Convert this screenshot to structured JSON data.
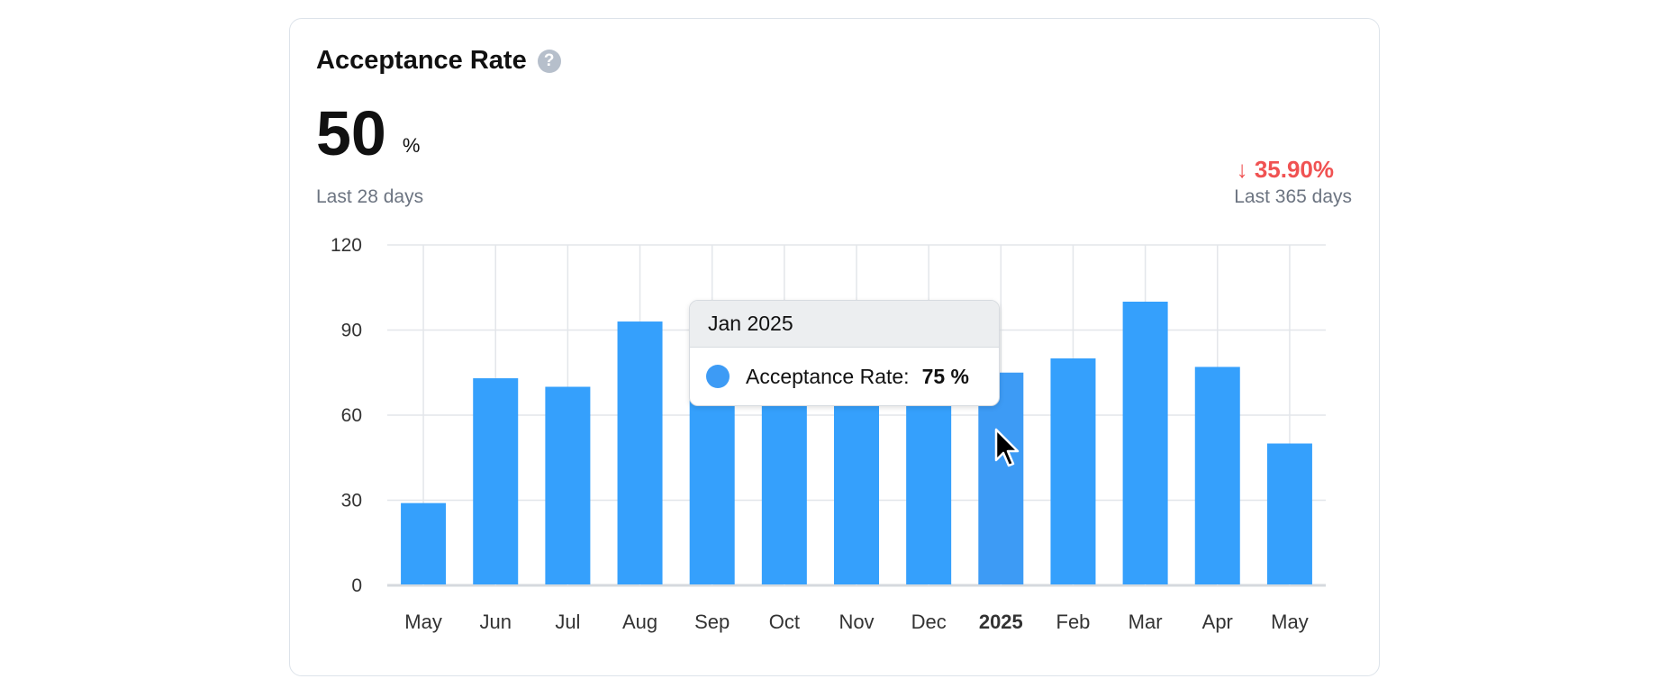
{
  "card": {
    "title": "Acceptance Rate",
    "help_icon": "question-circle-icon",
    "kpi_value": "50",
    "kpi_unit": "%",
    "kpi_period": "Last 28 days",
    "delta": "↓ 35.90%",
    "delta_period": "Last 365 days"
  },
  "colors": {
    "bar": "#35a0fc",
    "bar_hover": "#3d9bf5",
    "delta_negative": "#f05252",
    "grid": "#e3e6ea"
  },
  "tooltip": {
    "title": "Jan 2025",
    "series_label": "Acceptance Rate:",
    "value": "75 %"
  },
  "chart_data": {
    "type": "bar",
    "categories": [
      "May",
      "Jun",
      "Jul",
      "Aug",
      "Sep",
      "Oct",
      "Nov",
      "Dec",
      "2025",
      "Feb",
      "Mar",
      "Apr",
      "May"
    ],
    "values": [
      29,
      73,
      70,
      93,
      68,
      68,
      68,
      68,
      75,
      80,
      100,
      77,
      50
    ],
    "highlighted_category": "2025",
    "ylim": [
      0,
      120
    ],
    "yticks": [
      0,
      30,
      60,
      90,
      120
    ],
    "grid": true,
    "title": "",
    "xlabel": "",
    "ylabel": ""
  }
}
